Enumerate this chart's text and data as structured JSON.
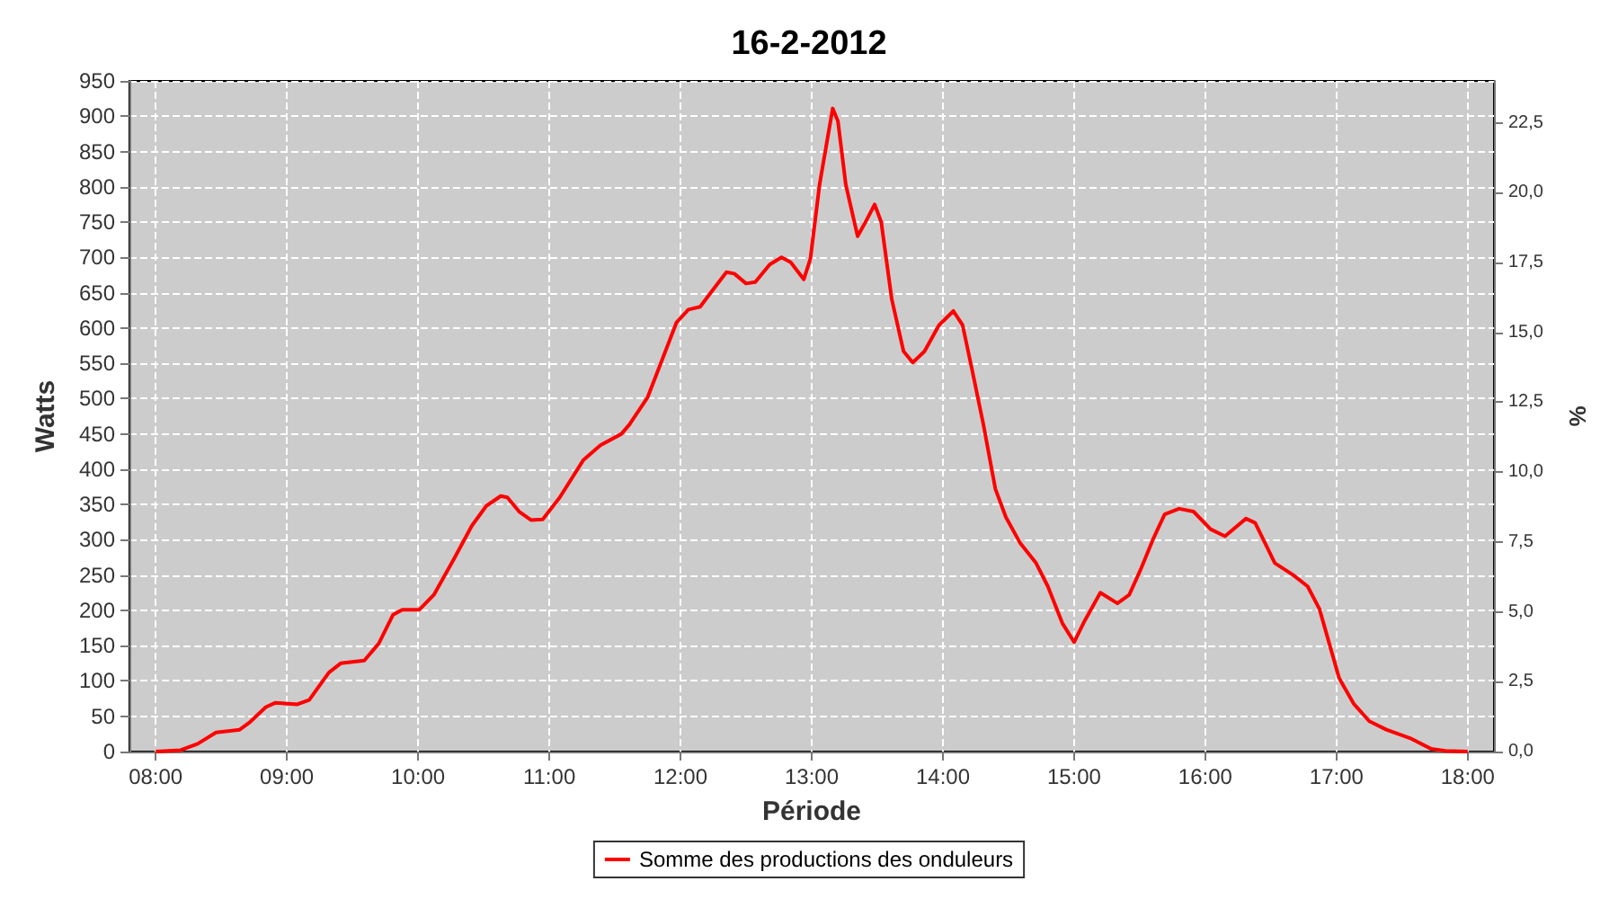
{
  "chart_data": {
    "type": "line",
    "title": "16-2-2012",
    "xlabel": "Période",
    "ylabel": "Watts",
    "y2label": "%",
    "xlim": [
      7.8,
      18.2
    ],
    "xticks": [
      {
        "value": 8,
        "label": "08:00"
      },
      {
        "value": 9,
        "label": "09:00"
      },
      {
        "value": 10,
        "label": "10:00"
      },
      {
        "value": 11,
        "label": "11:00"
      },
      {
        "value": 12,
        "label": "12:00"
      },
      {
        "value": 13,
        "label": "13:00"
      },
      {
        "value": 14,
        "label": "14:00"
      },
      {
        "value": 15,
        "label": "15:00"
      },
      {
        "value": 16,
        "label": "16:00"
      },
      {
        "value": 17,
        "label": "17:00"
      },
      {
        "value": 18,
        "label": "18:00"
      }
    ],
    "ylim": [
      0,
      950
    ],
    "yticks": [
      0,
      50,
      100,
      150,
      200,
      250,
      300,
      350,
      400,
      450,
      500,
      550,
      600,
      650,
      700,
      750,
      800,
      850,
      900,
      950
    ],
    "y2lim": [
      0,
      24
    ],
    "y2ticks": [
      {
        "value": 0,
        "label": "0,0"
      },
      {
        "value": 2.5,
        "label": "2,5"
      },
      {
        "value": 5,
        "label": "5,0"
      },
      {
        "value": 7.5,
        "label": "7,5"
      },
      {
        "value": 10,
        "label": "10,0"
      },
      {
        "value": 12.5,
        "label": "12,5"
      },
      {
        "value": 15,
        "label": "15,0"
      },
      {
        "value": 17.5,
        "label": "17,5"
      },
      {
        "value": 20,
        "label": "20,0"
      },
      {
        "value": 22.5,
        "label": "22,5"
      }
    ],
    "grid": true,
    "legend": "bottom",
    "marker": "none",
    "line_style": "solid",
    "series": [
      {
        "name": "Somme des productions des onduleurs",
        "color": "#ff0000",
        "x": [
          8.0,
          8.19,
          8.32,
          8.46,
          8.64,
          8.72,
          8.84,
          8.91,
          9.08,
          9.17,
          9.32,
          9.41,
          9.59,
          9.7,
          9.81,
          9.88,
          10.01,
          10.12,
          10.28,
          10.41,
          10.52,
          10.63,
          10.68,
          10.77,
          10.86,
          10.95,
          11.08,
          11.26,
          11.39,
          11.55,
          11.61,
          11.75,
          11.86,
          11.97,
          12.06,
          12.15,
          12.21,
          12.35,
          12.41,
          12.5,
          12.57,
          12.68,
          12.77,
          12.84,
          12.94,
          12.99,
          13.06,
          13.16,
          13.2,
          13.26,
          13.35,
          13.41,
          13.48,
          13.53,
          13.61,
          13.7,
          13.77,
          13.86,
          13.97,
          14.08,
          14.15,
          14.22,
          14.31,
          14.4,
          14.48,
          14.59,
          14.71,
          14.8,
          14.91,
          15.0,
          15.08,
          15.2,
          15.33,
          15.42,
          15.51,
          15.6,
          15.69,
          15.8,
          15.91,
          16.04,
          16.15,
          16.31,
          16.38,
          16.53,
          16.67,
          16.78,
          16.87,
          17.02,
          17.13,
          17.25,
          17.38,
          17.56,
          17.72,
          17.83,
          18.0
        ],
        "values": [
          0,
          2,
          11,
          27,
          31,
          42,
          63,
          69,
          67,
          73,
          112,
          125,
          129,
          153,
          194,
          201,
          201,
          222,
          275,
          320,
          348,
          362,
          360,
          340,
          328,
          329,
          360,
          413,
          434,
          450,
          463,
          502,
          555,
          608,
          626,
          630,
          645,
          679,
          677,
          663,
          665,
          690,
          700,
          693,
          669,
          698,
          803,
          911,
          893,
          803,
          730,
          750,
          775,
          750,
          641,
          567,
          551,
          567,
          604,
          624,
          604,
          543,
          462,
          372,
          332,
          295,
          267,
          234,
          182,
          155,
          185,
          225,
          210,
          222,
          259,
          300,
          336,
          344,
          340,
          315,
          305,
          330,
          324,
          267,
          250,
          234,
          202,
          104,
          68,
          43,
          31,
          19,
          4,
          1,
          0
        ]
      }
    ]
  }
}
